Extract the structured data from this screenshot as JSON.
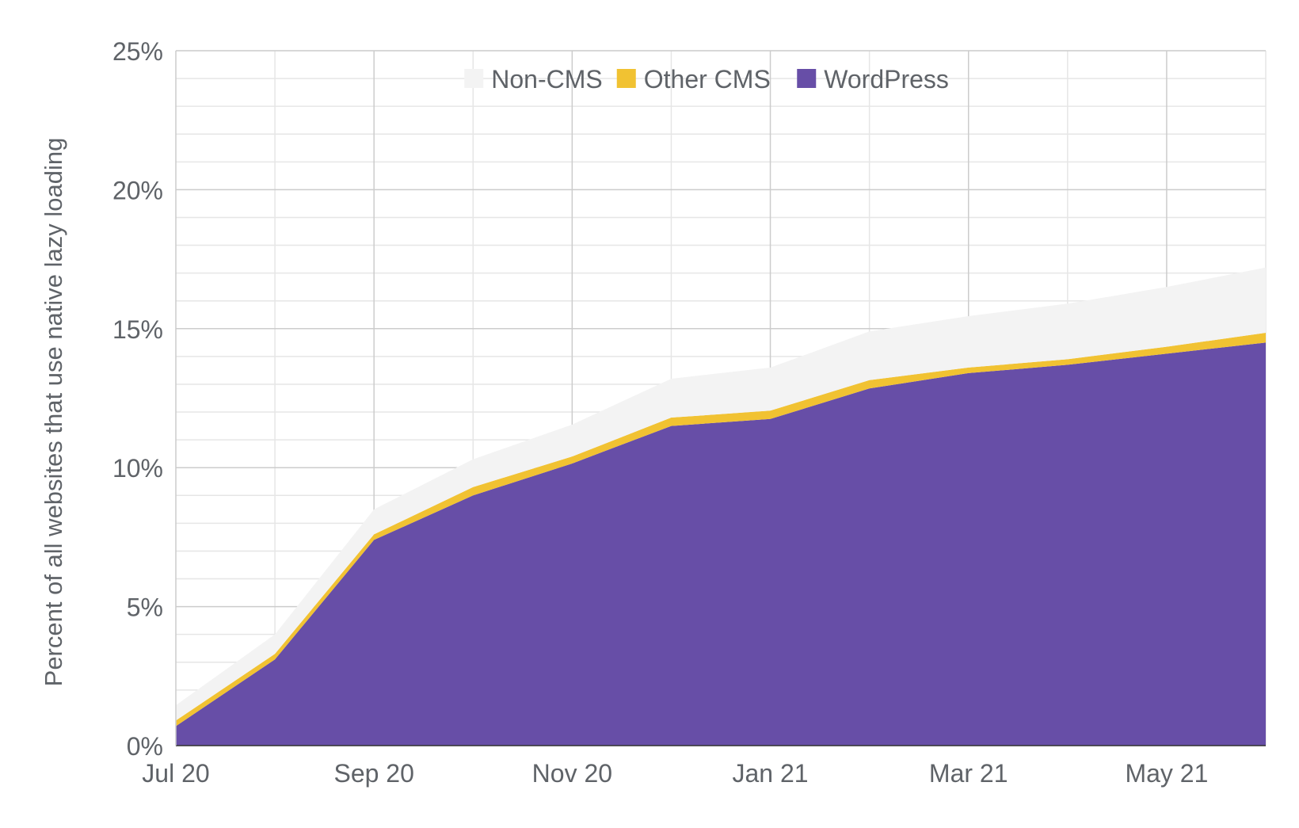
{
  "chart_data": {
    "type": "stacked_area",
    "y_label": "Percent of all websites that use native lazy loading",
    "categories": [
      "Jul 20",
      null,
      "Sep 20",
      null,
      "Nov 20",
      null,
      "Jan 21",
      null,
      "Mar 21",
      null,
      "May 21",
      null
    ],
    "series": [
      {
        "name": "Non-CMS",
        "color": "#f3f3f3",
        "values": [
          0.55,
          0.7,
          0.9,
          1.0,
          1.15,
          1.4,
          1.55,
          1.75,
          1.85,
          2.0,
          2.15,
          2.35
        ]
      },
      {
        "name": "Other CMS",
        "color": "#f1c232",
        "values": [
          0.2,
          0.2,
          0.2,
          0.3,
          0.25,
          0.3,
          0.3,
          0.3,
          0.2,
          0.2,
          0.25,
          0.35
        ]
      },
      {
        "name": "WordPress",
        "color": "#674ea7",
        "values": [
          0.7,
          3.1,
          7.4,
          9.0,
          10.15,
          11.5,
          11.75,
          12.85,
          13.4,
          13.7,
          14.1,
          14.5
        ]
      }
    ],
    "ylim": [
      0,
      25
    ],
    "yticks": [
      {
        "value": 0,
        "label": "0%"
      },
      {
        "value": 5,
        "label": "5%"
      },
      {
        "value": 10,
        "label": "10%"
      },
      {
        "value": 15,
        "label": "15%"
      },
      {
        "value": 20,
        "label": "20%"
      },
      {
        "value": 25,
        "label": "25%"
      }
    ],
    "grid": true,
    "legend": "top"
  }
}
